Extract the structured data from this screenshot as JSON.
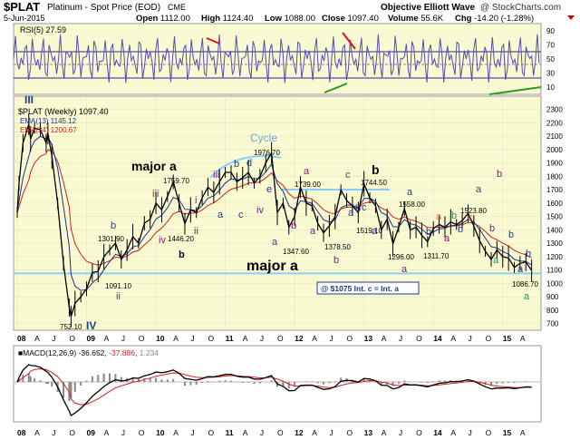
{
  "header": {
    "symbol": "$PLAT",
    "name": "Platinum - Spot Price (EOD)",
    "exchange": "CME",
    "date": "5-Jun-2015",
    "open_label": "Open",
    "open": "1112.00",
    "high_label": "High",
    "high": "1124.40",
    "low_label": "Low",
    "low": "1088.00",
    "close_label": "Close",
    "close": "1097.40",
    "volume_label": "Volume",
    "volume": "55.6K",
    "chg_label": "Chg",
    "chg": "-14.20 (-1.28%)",
    "source": "Objective Elliott Wave",
    "watermark": "@ StockCharts.com"
  },
  "colors": {
    "panel_bg": "#fafad2",
    "price_line": "#000000",
    "ema13": "#1c2e8c",
    "ema34": "#d02020",
    "rsi": "#5a4ab8",
    "support": "#87cefa",
    "wave_minor": "#7a1a7a",
    "wave_major": "#000000",
    "wave_blue": "#1f3b8c",
    "wave_green": "#1a9a6a",
    "wave_orange": "#e07020",
    "cycle": "#6aaad8"
  },
  "rsi_panel": {
    "label": "RSI(5) 27.59",
    "ticks": [
      "90",
      "70",
      "50",
      "30",
      "10"
    ]
  },
  "price_panel": {
    "title": "$PLAT (Weekly) 1097.40",
    "ema13_label": "EMA(13) 1145.12",
    "ema34_label": "EMA(34) 1200.67",
    "roman_top": "III",
    "roman_bottom": "IV",
    "box_label": "@ $1075 Int. c = Int. a"
  },
  "macd_panel": {
    "label_main": "MACD(12,26,9)",
    "macd": "-36.652",
    "signal": "-37.886",
    "hist": "1.234"
  },
  "chart_data": {
    "type": "line",
    "title": "Platinum - Spot Price (EOD)",
    "y_ticks": [
      700,
      800,
      900,
      1000,
      1100,
      1200,
      1300,
      1400,
      1500,
      1600,
      1700,
      1800,
      1900,
      2000,
      2100,
      2200,
      2300
    ],
    "ylim": [
      650,
      2400
    ],
    "x_ticks": [
      "08",
      "A",
      "J",
      "O",
      "09",
      "A",
      "J",
      "O",
      "10",
      "A",
      "J",
      "O",
      "11",
      "A",
      "J",
      "O",
      "12",
      "A",
      "J",
      "O",
      "13",
      "A",
      "J",
      "O",
      "14",
      "A",
      "J",
      "O",
      "15",
      "A"
    ],
    "support_level": 1075,
    "points": [
      [
        "2008-01",
        1530
      ],
      [
        "2008-01",
        1750
      ],
      [
        "2008-02",
        2050
      ],
      [
        "2008-03",
        2190
      ],
      [
        "2008-03",
        2080
      ],
      [
        "2008-04",
        2160
      ],
      [
        "2008-05",
        2150
      ],
      [
        "2008-06",
        2050
      ],
      [
        "2008-06",
        2120
      ],
      [
        "2008-07",
        1950
      ],
      [
        "2008-08",
        1600
      ],
      [
        "2008-09",
        1150
      ],
      [
        "2008-10",
        820
      ],
      [
        "2008-10",
        752.1
      ],
      [
        "2008-11",
        850
      ],
      [
        "2008-12",
        900
      ],
      [
        "2009-01",
        960
      ],
      [
        "2009-02",
        1080
      ],
      [
        "2009-03",
        1091.1
      ],
      [
        "2009-04",
        1200
      ],
      [
        "2009-05",
        1250
      ],
      [
        "2009-06",
        1301.9
      ],
      [
        "2009-07",
        1180
      ],
      [
        "2009-08",
        1250
      ],
      [
        "2009-09",
        1350
      ],
      [
        "2009-10",
        1300
      ],
      [
        "2009-11",
        1450
      ],
      [
        "2009-12",
        1480
      ],
      [
        "2010-01",
        1600
      ],
      [
        "2010-02",
        1550
      ],
      [
        "2010-03",
        1650
      ],
      [
        "2010-04",
        1759.7
      ],
      [
        "2010-05",
        1600
      ],
      [
        "2010-06",
        1446.2
      ],
      [
        "2010-07",
        1550
      ],
      [
        "2010-08",
        1530
      ],
      [
        "2010-09",
        1640
      ],
      [
        "2010-10",
        1720
      ],
      [
        "2010-11",
        1680
      ],
      [
        "2010-12",
        1760
      ],
      [
        "2011-01",
        1830
      ],
      [
        "2011-02",
        1830
      ],
      [
        "2011-03",
        1760
      ],
      [
        "2011-04",
        1790
      ],
      [
        "2011-05",
        1830
      ],
      [
        "2011-06",
        1750
      ],
      [
        "2011-07",
        1800
      ],
      [
        "2011-08",
        1900
      ],
      [
        "2011-09",
        1976.7
      ],
      [
        "2011-10",
        1530
      ],
      [
        "2011-11",
        1600
      ],
      [
        "2011-12",
        1420
      ],
      [
        "2012-01",
        1500
      ],
      [
        "2012-02",
        1720
      ],
      [
        "2012-03",
        1600
      ],
      [
        "2012-04",
        1580
      ],
      [
        "2012-05",
        1450
      ],
      [
        "2012-06",
        1378.5
      ],
      [
        "2012-07",
        1430
      ],
      [
        "2012-08",
        1500
      ],
      [
        "2012-09",
        1700
      ],
      [
        "2012-10",
        1620
      ],
      [
        "2012-11",
        1580
      ],
      [
        "2012-12",
        1530
      ],
      [
        "2013-01",
        1744.5
      ],
      [
        "2013-02",
        1640
      ],
      [
        "2013-03",
        1580
      ],
      [
        "2013-04",
        1400
      ],
      [
        "2013-05",
        1480
      ],
      [
        "2013-06",
        1296
      ],
      [
        "2013-07",
        1420
      ],
      [
        "2013-08",
        1558
      ],
      [
        "2013-09",
        1400
      ],
      [
        "2013-10",
        1420
      ],
      [
        "2013-11",
        1360
      ],
      [
        "2013-12",
        1311.7
      ],
      [
        "2014-01",
        1410
      ],
      [
        "2014-02",
        1440
      ],
      [
        "2014-03",
        1420
      ],
      [
        "2014-04",
        1460
      ],
      [
        "2014-05",
        1440
      ],
      [
        "2014-06",
        1470
      ],
      [
        "2014-07",
        1523.8
      ],
      [
        "2014-08",
        1430
      ],
      [
        "2014-09",
        1320
      ],
      [
        "2014-10",
        1240
      ],
      [
        "2014-11",
        1180
      ],
      [
        "2014-12",
        1250
      ],
      [
        "2015-01",
        1200
      ],
      [
        "2015-02",
        1190
      ],
      [
        "2015-03",
        1120
      ],
      [
        "2015-04",
        1150
      ],
      [
        "2015-05",
        1160
      ],
      [
        "2015-06",
        1097.4
      ]
    ],
    "price_annotations": [
      "1976.70",
      "1759.70",
      "1739.00",
      "1744.50",
      "1558.00",
      "1523.80",
      "1446.20",
      "1519.10",
      "1347.60",
      "1378.50",
      "1296.00",
      "1311.70",
      "1301.90",
      "1091.10",
      "752.10",
      "1086.70"
    ],
    "wave_labels": [
      "III",
      "IV",
      "major a",
      "major a",
      "b",
      "Cycle",
      "i",
      "ii",
      "iii",
      "iv",
      "b",
      "d",
      "b",
      "c",
      "e",
      "a",
      "b",
      "c",
      "a",
      "b",
      "a",
      "b",
      "c",
      "a",
      "b",
      "a",
      "b",
      "c",
      "a",
      "b",
      "a",
      "c",
      "b",
      "a",
      "b",
      "a",
      "b",
      "a",
      "b",
      "a",
      "b",
      "a",
      "b",
      "c",
      "a",
      "a",
      "b",
      "c",
      "b",
      "a"
    ],
    "rsi_levels": [
      90,
      70,
      50,
      30,
      10
    ],
    "macd": {
      "macd": -36.652,
      "signal": -37.886,
      "hist": 1.234
    }
  }
}
